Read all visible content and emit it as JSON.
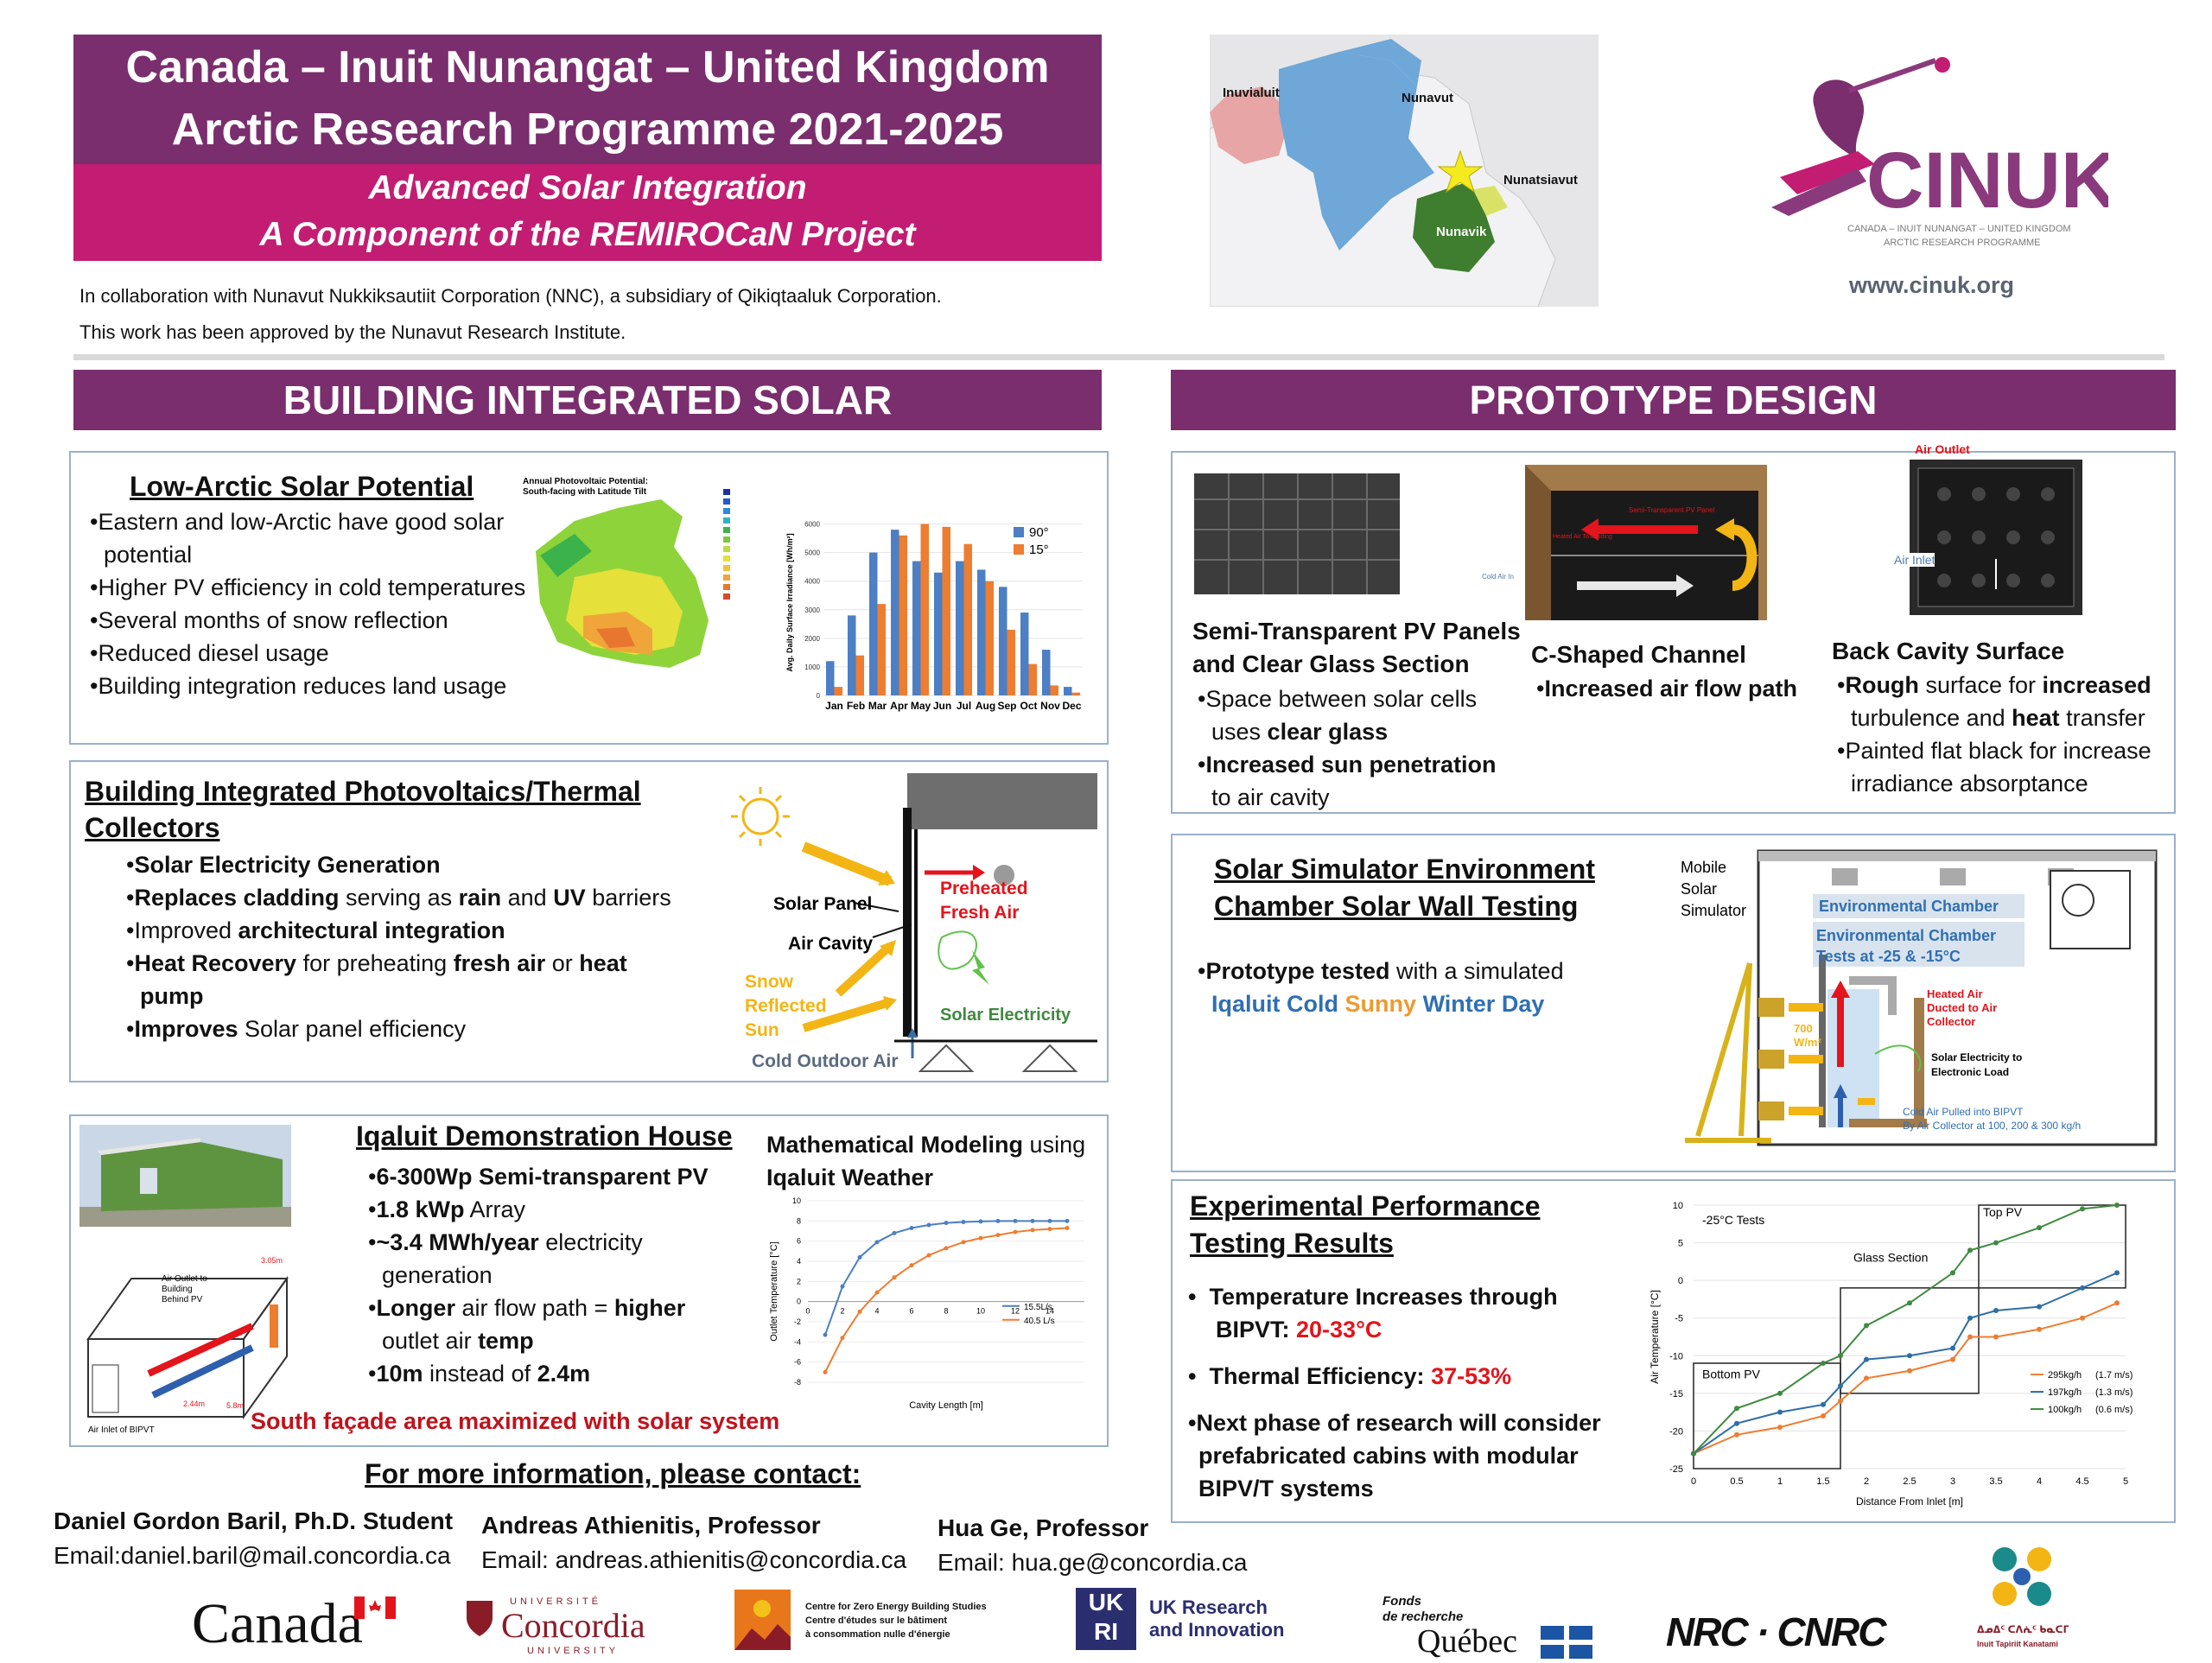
{
  "header": {
    "title_line1": "Canada – Inuit Nunangat – United Kingdom",
    "title_line2": "Arctic Research Programme 2021-2025",
    "subtitle_line1": "Advanced Solar Integration",
    "subtitle_line2": "A Component of the REMIROCaN Project",
    "collab_line1": "In collaboration with Nunavut Nukkiksautiit Corporation (NNC), a subsidiary of Qikiqtaaluk Corporation.",
    "collab_line2": "This work has been approved by the Nunavut Research Institute."
  },
  "map": {
    "labels": [
      "Inuvialuit",
      "Nunavut",
      "Nunatsiavut",
      "Nunavik"
    ]
  },
  "logo": {
    "name": "CINUK",
    "tagline1": "CANADA – INUIT NUNANGAT – UNITED KINGDOM",
    "tagline2": "ARCTIC RESEARCH PROGRAMME",
    "url": "www.cinuk.org"
  },
  "left": {
    "section_title": "BUILDING INTEGRATED SOLAR",
    "potential": {
      "title": "Low-Arctic Solar Potential",
      "bullets": [
        "Eastern and low-Arctic have good solar potential",
        "Higher PV efficiency in cold temperatures",
        "Several months of snow reflection",
        "Reduced diesel usage",
        "Building integration reduces land usage"
      ],
      "map_title_1": "Annual Photovoltaic Potential:",
      "map_title_2": "South-facing with Latitude Tilt"
    },
    "bipvt": {
      "title_1": "Building Integrated Photovoltaics/Thermal",
      "title_2": "Collectors",
      "b1": "Solar Electricity Generation",
      "b2_a": "Replaces cladding",
      "b2_b": " serving as ",
      "b2_c": "rain",
      "b2_d": " and ",
      "b2_e": "UV",
      "b2_f": " barriers",
      "b3_a": "Improved ",
      "b3_b": "architectural integration",
      "b4_a": "Heat Recovery",
      "b4_b": " for preheating ",
      "b4_c": "fresh air",
      "b4_d": " or ",
      "b4_e": "heat pump",
      "b5_a": "Improves",
      "b5_b": " Solar panel efficiency",
      "diag_solar_panel": "Solar Panel",
      "diag_air_cavity": "Air Cavity",
      "diag_preheated_1": "Preheated",
      "diag_preheated_2": "Fresh Air",
      "diag_snow_1": "Snow",
      "diag_snow_2": "Reflected",
      "diag_snow_3": "Sun",
      "diag_electricity": "Solar Electricity",
      "diag_cold": "Cold Outdoor Air"
    },
    "house": {
      "title": "Iqaluit Demonstration House",
      "b1": "6-300Wp Semi-transparent PV",
      "b2": "1.8 kWp",
      "b2_rest": " Array",
      "b3": "~3.4 MWh/year",
      "b3_rest": " electricity generation",
      "b4_a": "Longer",
      "b4_b": " air flow path = ",
      "b4_c": "higher",
      "b4_d": " outlet air ",
      "b4_e": "temp",
      "b5_a": "10m",
      "b5_b": " instead of ",
      "b5_c": "2.4m",
      "caption": "South façade area maximized with solar system",
      "model_title_a": "Mathematical Modeling",
      "model_title_b": " using",
      "model_title_c": "Iqaluit Weather",
      "diag_outlet_1": "Air Outlet to",
      "diag_outlet_2": "Building",
      "diag_outlet_3": "Behind PV",
      "diag_inlet": "Air Inlet of BIPVT",
      "diag_dim1": "3.05m",
      "diag_dim2": "2.44m",
      "diag_dim3": "5.8m"
    },
    "contact": {
      "title": "For more information, please contact:",
      "p1_name": "Daniel Gordon Baril, Ph.D. Student",
      "p1_email": "Email:daniel.baril@mail.concordia.ca",
      "p2_name": "Andreas Athienitis, Professor",
      "p2_email": "Email: andreas.athienitis@concordia.ca",
      "p3_name": "Hua Ge, Professor",
      "p3_email": "Email: hua.ge@concordia.ca"
    }
  },
  "right": {
    "section_title": "PROTOTYPE DESIGN",
    "proto": {
      "c1_title_1": "Semi-Transparent PV Panels",
      "c1_title_2": "and Clear Glass Section",
      "c1_b1_a": "Space between solar cells uses ",
      "c1_b1_b": "clear glass",
      "c1_b2_a": "Increased sun penetration",
      "c1_b2_b": " to air cavity",
      "c2_title": "C-Shaped Channel",
      "c2_b1": "Increased air flow path",
      "c3_title": "Back Cavity Surface",
      "c3_b1_a": "Rough",
      "c3_b1_b": " surface for ",
      "c3_b1_c": "increased",
      "c3_b1_d": " turbulence and ",
      "c3_b1_e": "heat",
      "c3_b1_f": " transfer",
      "c3_b2": "Painted flat black for increase irradiance absorptance",
      "d_semi": "Semi-Transparent PV Panel",
      "d_heated": "Heated Air To Building",
      "d_cold": "Cold Air In",
      "d_air_outlet": "Air Outlet",
      "d_air_inlet": "Air Inlet"
    },
    "simulator": {
      "title_1": "Solar Simulator Environment",
      "title_2": "Chamber Solar Wall Testing",
      "b1_a": "Prototype tested",
      "b1_b": " with a simulated",
      "w_iqaluit": "Iqaluit",
      "w_cold": "Cold",
      "w_sunny": "Sunny",
      "w_winter": "Winter Day",
      "d_mobile_1": "Mobile",
      "d_mobile_2": "Solar",
      "d_mobile_3": "Simulator",
      "d_env": "Environmental Chamber",
      "d_env_tests_1": "Environmental Chamber",
      "d_env_tests_2": "Tests at  -25 & -15°C",
      "d_heated_1": "Heated Air",
      "d_heated_2": "Ducted to Air",
      "d_heated_3": "Collector",
      "d_w_1": "700",
      "d_w_2": "W/m²",
      "d_elec_1": "Solar Electricity to",
      "d_elec_2": "Electronic Load",
      "d_cold_1": "Cold Air Pulled into BIPVT",
      "d_cold_2": "By Air Collector at 100, 200 & 300 kg/h"
    },
    "results": {
      "title_1": "Experimental Performance",
      "title_2": "Testing Results",
      "b1_a": "Temperature Increases through",
      "b1_b": "BIPVT: ",
      "b1_c": "20-33°C",
      "b2_a": "Thermal Efficiency: ",
      "b2_b": "37-53%",
      "b3_1": "Next phase of research will consider",
      "b3_2": "prefabricated cabins with modular",
      "b3_3": "BIPV/T systems"
    }
  },
  "sponsors": {
    "canada": "Canada",
    "concordia_top": "UNIVERSITÉ",
    "concordia": "Concordia",
    "concordia_bottom": "UNIVERSITY",
    "czebs_1": "Centre for Zero Energy Building Studies",
    "czebs_2": "Centre d'études sur le bâtiment",
    "czebs_3": "à consommation nulle d'énergie",
    "ukri_logo": "UK RI",
    "ukri_1": "UK Research",
    "ukri_2": "and Innovation",
    "frq_1": "Fonds",
    "frq_2": "de recherche",
    "frq_3": "Québec",
    "nrc": "NRC · CNRC",
    "itk_1": "ᐃᓄᐃᑦ ᑕᐱᕇᑦ ᑲᓇᑕᒥ",
    "itk_2": "Inuit Tapiriit Kanatami"
  },
  "chart_data": [
    {
      "type": "bar",
      "ylabel": "Avg. Daily Surface Irradiance [Wh/m²]",
      "categories": [
        "Jan",
        "Feb",
        "Mar",
        "Apr",
        "May",
        "Jun",
        "Jul",
        "Aug",
        "Sep",
        "Oct",
        "Nov",
        "Dec"
      ],
      "yticks": [
        "0",
        "1000",
        "2000",
        "3000",
        "4000",
        "5000",
        "6000"
      ],
      "ylim": [
        0,
        6500
      ],
      "series": [
        {
          "name": "90°",
          "color": "#4c7fc4",
          "values": [
            1200,
            2800,
            5000,
            5800,
            4700,
            4300,
            4700,
            4400,
            3800,
            2900,
            1600,
            300
          ]
        },
        {
          "name": "15°",
          "color": "#ed7d31",
          "values": [
            300,
            1400,
            3200,
            5600,
            6000,
            5900,
            5300,
            4000,
            2300,
            1100,
            350,
            100
          ]
        }
      ],
      "legend": "top-right"
    },
    {
      "type": "line",
      "xlabel": "Cavity Length [m]",
      "ylabel": "Outlet Temperature [°C]",
      "xticks": [
        "0",
        "2",
        "4",
        "6",
        "8",
        "10",
        "12",
        "14"
      ],
      "yticks": [
        "-8",
        "-6",
        "-4",
        "-2",
        "0",
        "2",
        "4",
        "6",
        "8",
        "10"
      ],
      "xlim": [
        0,
        16
      ],
      "ylim": [
        -8,
        10
      ],
      "series": [
        {
          "name": "15.5L/s",
          "color": "#4c7fc4",
          "x": [
            1,
            2,
            3,
            4,
            5,
            6,
            7,
            8,
            9,
            10,
            11,
            12,
            13,
            14,
            15
          ],
          "y": [
            -3.3,
            1.5,
            4.4,
            5.9,
            6.8,
            7.3,
            7.6,
            7.8,
            7.9,
            7.95,
            8.0,
            8.0,
            8.0,
            8.0,
            8.0
          ]
        },
        {
          "name": "40.5 L/s",
          "color": "#ed7d31",
          "x": [
            1,
            2,
            3,
            4,
            5,
            6,
            7,
            8,
            9,
            10,
            11,
            12,
            13,
            14,
            15
          ],
          "y": [
            -7.0,
            -3.6,
            -1.0,
            0.9,
            2.4,
            3.6,
            4.6,
            5.3,
            5.9,
            6.3,
            6.6,
            6.9,
            7.1,
            7.2,
            7.3
          ]
        }
      ],
      "legend": "right"
    },
    {
      "type": "line",
      "xlabel": "Distance From Inlet [m]",
      "ylabel": "Air Temperature [°C]",
      "xticks": [
        "0",
        "0.5",
        "1",
        "1.5",
        "2",
        "2.5",
        "3",
        "3.5",
        "4",
        "4.5",
        "5"
      ],
      "yticks": [
        "-25",
        "-20",
        "-15",
        "-10",
        "-5",
        "0",
        "5",
        "10"
      ],
      "xlim": [
        0,
        5
      ],
      "ylim": [
        -25,
        10
      ],
      "annotations": [
        "-25°C Tests",
        "Bottom PV",
        "Glass Section",
        "Top PV"
      ],
      "series": [
        {
          "name": "295kg/h",
          "note": "(1.7 m/s)",
          "color": "#ed7d31",
          "x": [
            0,
            0.5,
            1,
            1.5,
            1.7,
            2,
            2.5,
            3,
            3.2,
            3.5,
            4,
            4.5,
            4.9
          ],
          "y": [
            -23,
            -20.5,
            -19.5,
            -18,
            -16,
            -13,
            -12,
            -10.5,
            -7.5,
            -7.5,
            -6.5,
            -5,
            -3
          ]
        },
        {
          "name": "197kg/h",
          "note": "(1.3 m/s)",
          "color": "#2e6ea6",
          "x": [
            0,
            0.5,
            1,
            1.5,
            1.7,
            2,
            2.5,
            3,
            3.2,
            3.5,
            4,
            4.5,
            4.9
          ],
          "y": [
            -23,
            -19,
            -17.5,
            -16.5,
            -14,
            -10.5,
            -10,
            -9,
            -5,
            -4,
            -3.5,
            -1,
            1
          ]
        },
        {
          "name": "100kg/h",
          "note": "(0.6 m/s)",
          "color": "#3f8a3f",
          "x": [
            0,
            0.5,
            1,
            1.5,
            1.7,
            2,
            2.5,
            3,
            3.2,
            3.5,
            4,
            4.5,
            4.9
          ],
          "y": [
            -23,
            -17,
            -15,
            -11,
            -10,
            -6,
            -3,
            1,
            4,
            5,
            7,
            9.5,
            10
          ]
        }
      ],
      "legend": "bottom-right"
    }
  ]
}
